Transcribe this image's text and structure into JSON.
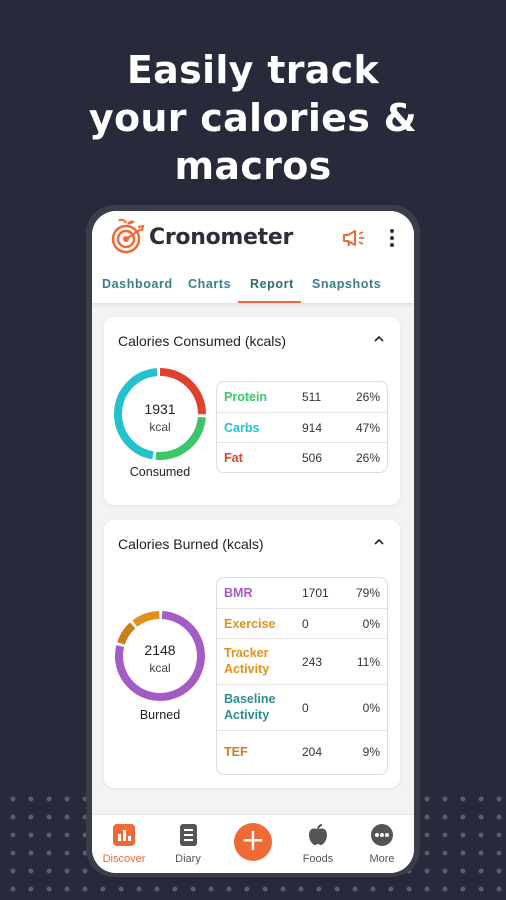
{
  "headline": [
    "Easily track",
    "your calories &",
    "macros"
  ],
  "app": {
    "brand": "Cronometer",
    "accent": "#ef6a34",
    "tabs": [
      {
        "label": "Dashboard",
        "active": false
      },
      {
        "label": "Charts",
        "active": false
      },
      {
        "label": "Report",
        "active": true
      },
      {
        "label": "Snapshots",
        "active": false
      }
    ]
  },
  "consumed": {
    "title": "Calories Consumed (kcals)",
    "total": "1931",
    "unit": "kcal",
    "label": "Consumed",
    "rows": [
      {
        "name": "Protein",
        "value": "511",
        "pct": "26%",
        "color": "#3cc66a"
      },
      {
        "name": "Carbs",
        "value": "914",
        "pct": "47%",
        "color": "#24c1d0"
      },
      {
        "name": "Fat",
        "value": "506",
        "pct": "26%",
        "color": "#e0412a"
      }
    ]
  },
  "burned": {
    "title": "Calories Burned (kcals)",
    "total": "2148",
    "unit": "kcal",
    "label": "Burned",
    "rows": [
      {
        "name": "BMR",
        "value": "1701",
        "pct": "79%",
        "color": "#a35cc4"
      },
      {
        "name": "Exercise",
        "value": "0",
        "pct": "0%",
        "color": "#e3901a"
      },
      {
        "name": "Tracker Activity",
        "value": "243",
        "pct": "11%",
        "color": "#e3901a"
      },
      {
        "name": "Baseline Activity",
        "value": "0",
        "pct": "0%",
        "color": "#2c8e93"
      },
      {
        "name": "TEF",
        "value": "204",
        "pct": "9%",
        "color": "#c97f1c"
      }
    ]
  },
  "nav": {
    "items": [
      {
        "label": "Discover",
        "icon": "bar-chart-icon",
        "active": true
      },
      {
        "label": "Diary",
        "icon": "notebook-icon",
        "active": false
      },
      {
        "label": "",
        "icon": "plus-icon",
        "active": false
      },
      {
        "label": "Foods",
        "icon": "apple-icon",
        "active": false
      },
      {
        "label": "More",
        "icon": "more-dots-icon",
        "active": false
      }
    ]
  }
}
